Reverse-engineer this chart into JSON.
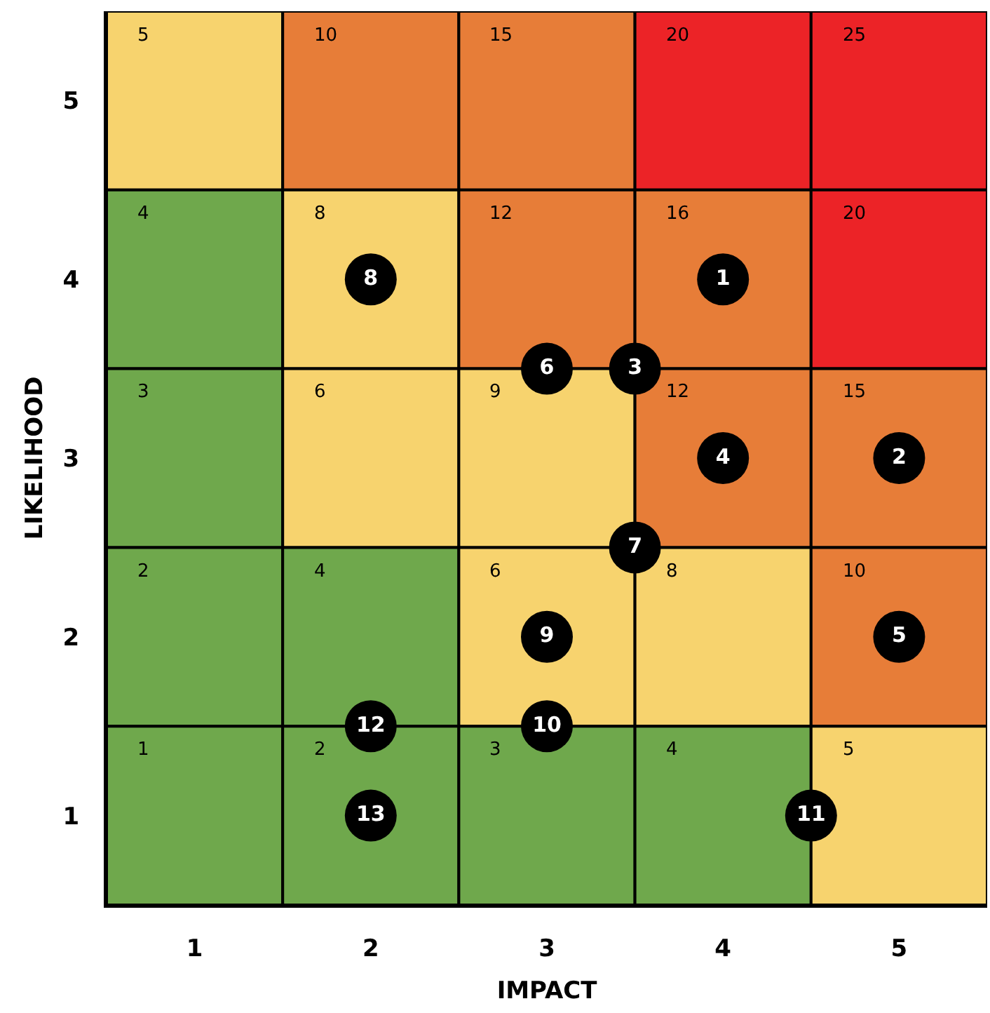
{
  "chart_data": {
    "type": "heatmap",
    "xlabel": "IMPACT",
    "ylabel": "LIKELIHOOD",
    "xlim": [
      0.5,
      5.5
    ],
    "xticks": [
      1,
      2,
      3,
      4,
      5
    ],
    "ylim": [
      0.5,
      5.5
    ],
    "yticks": [
      1,
      2,
      3,
      4,
      5
    ],
    "cells": [
      [
        5,
        10,
        15,
        20,
        25
      ],
      [
        4,
        8,
        12,
        16,
        20
      ],
      [
        3,
        6,
        9,
        12,
        15
      ],
      [
        2,
        4,
        6,
        8,
        10
      ],
      [
        1,
        2,
        3,
        4,
        5
      ]
    ],
    "colors": [
      [
        "#f7d36e",
        "#e77d38",
        "#e77d38",
        "#ec2327",
        "#ec2327"
      ],
      [
        "#6fa84c",
        "#f7d36e",
        "#e77d38",
        "#e77d38",
        "#ec2327"
      ],
      [
        "#6fa84c",
        "#f7d36e",
        "#f7d36e",
        "#e77d38",
        "#e77d38"
      ],
      [
        "#6fa84c",
        "#6fa84c",
        "#f7d36e",
        "#f7d36e",
        "#e77d38"
      ],
      [
        "#6fa84c",
        "#6fa84c",
        "#6fa84c",
        "#6fa84c",
        "#f7d36e"
      ]
    ],
    "data_labels": true,
    "grid": false,
    "series": [
      {
        "type": "scatter",
        "name": "1",
        "color": "#000000",
        "marker": "circle",
        "x": [
          4
        ],
        "values": [
          4
        ],
        "value_labels": [
          null
        ]
      },
      {
        "type": "scatter",
        "name": "2",
        "color": "#000000",
        "marker": "circle",
        "x": [
          5
        ],
        "values": [
          3
        ],
        "value_labels": [
          null
        ]
      },
      {
        "type": "scatter",
        "name": "3",
        "color": "#000000",
        "marker": "circle",
        "x": [
          3.5
        ],
        "values": [
          3.5
        ],
        "value_labels": [
          null
        ]
      },
      {
        "type": "scatter",
        "name": "4",
        "color": "#000000",
        "marker": "circle",
        "x": [
          4
        ],
        "values": [
          3
        ],
        "value_labels": [
          null
        ]
      },
      {
        "type": "scatter",
        "name": "5",
        "color": "#000000",
        "marker": "circle",
        "x": [
          5
        ],
        "values": [
          2
        ],
        "value_labels": [
          null
        ]
      },
      {
        "type": "scatter",
        "name": "6",
        "color": "#000000",
        "marker": "circle",
        "x": [
          3
        ],
        "values": [
          3.5
        ],
        "value_labels": [
          null
        ]
      },
      {
        "type": "scatter",
        "name": "7",
        "color": "#000000",
        "marker": "circle",
        "x": [
          3.5
        ],
        "values": [
          2.5
        ],
        "value_labels": [
          null
        ]
      },
      {
        "type": "scatter",
        "name": "8",
        "color": "#000000",
        "marker": "circle",
        "x": [
          2
        ],
        "values": [
          4
        ],
        "value_labels": [
          null
        ]
      },
      {
        "type": "scatter",
        "name": "9",
        "color": "#000000",
        "marker": "circle",
        "x": [
          3
        ],
        "values": [
          2
        ],
        "value_labels": [
          null
        ]
      },
      {
        "type": "scatter",
        "name": "10",
        "color": "#000000",
        "marker": "circle",
        "x": [
          3
        ],
        "values": [
          1.5
        ],
        "value_labels": [
          null
        ]
      },
      {
        "type": "scatter",
        "name": "11",
        "color": "#000000",
        "marker": "circle",
        "x": [
          4.5
        ],
        "values": [
          1
        ],
        "value_labels": [
          null
        ]
      },
      {
        "type": "scatter",
        "name": "12",
        "color": "#000000",
        "marker": "circle",
        "x": [
          2
        ],
        "values": [
          1.5
        ],
        "value_labels": [
          null
        ]
      },
      {
        "type": "scatter",
        "name": "13",
        "color": "#000000",
        "marker": "circle",
        "x": [
          2
        ],
        "values": [
          1
        ],
        "value_labels": [
          null
        ]
      }
    ]
  }
}
